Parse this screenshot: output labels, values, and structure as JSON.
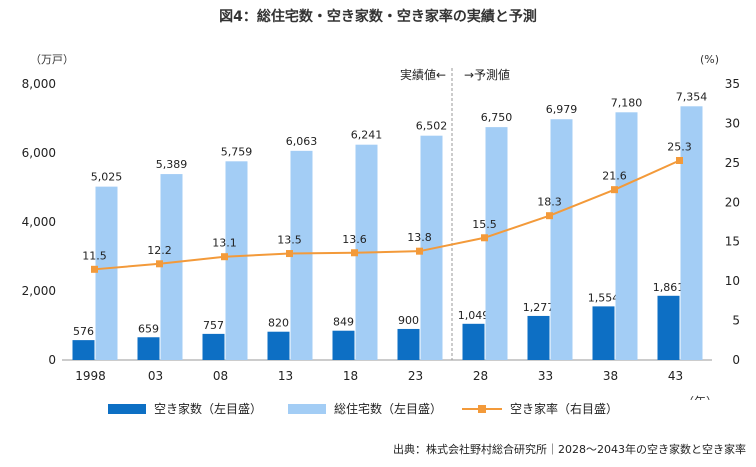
{
  "title": "図4：総住宅数・空き家数・空き家率の実績と予測",
  "source": "出典：株式会社野村総合研究所｜2028～2043年の空き家数と空き家率",
  "units": {
    "left": "（万戸）",
    "right": "(%)",
    "x": "（年）"
  },
  "annotations": {
    "actual": "実績値←",
    "forecast": "→予測値"
  },
  "legend": [
    {
      "key": "vacant_houses",
      "label": "空き家数（左目盛）",
      "color": "#0d6fc4"
    },
    {
      "key": "total_houses",
      "label": "総住宅数（左目盛）",
      "color": "#a3cdf5"
    },
    {
      "key": "vacancy_rate",
      "label": "空き家率（右目盛）",
      "color": "#f39a3a"
    }
  ],
  "chart_data": {
    "type": "bar",
    "categories": [
      "1998",
      "03",
      "08",
      "13",
      "18",
      "23",
      "28",
      "33",
      "38",
      "43"
    ],
    "series": [
      {
        "name": "空き家数（左目盛）",
        "axis": "left",
        "type": "bar",
        "color": "#0d6fc4",
        "values": [
          576,
          659,
          757,
          820,
          849,
          900,
          1049,
          1277,
          1554,
          1861
        ],
        "labels": [
          "576",
          "659",
          "757",
          "820",
          "849",
          "900",
          "1,049",
          "1,277",
          "1,554",
          "1,861"
        ]
      },
      {
        "name": "総住宅数（左目盛）",
        "axis": "left",
        "type": "bar",
        "color": "#a3cdf5",
        "values": [
          5025,
          5389,
          5759,
          6063,
          6241,
          6502,
          6750,
          6979,
          7180,
          7354
        ],
        "labels": [
          "5,025",
          "5,389",
          "5,759",
          "6,063",
          "6,241",
          "6,502",
          "6,750",
          "6,979",
          "7,180",
          "7,354"
        ]
      },
      {
        "name": "空き家率（右目盛）",
        "axis": "right",
        "type": "line",
        "color": "#f39a3a",
        "values": [
          11.5,
          12.2,
          13.1,
          13.5,
          13.6,
          13.8,
          15.5,
          18.3,
          21.6,
          25.3
        ],
        "labels": [
          "11.5",
          "12.2",
          "13.1",
          "13.5",
          "13.6",
          "13.8",
          "15.5",
          "18.3",
          "21.6",
          "25.3"
        ]
      }
    ],
    "y_left": {
      "min": 0,
      "max": 8000,
      "ticks": [
        "0",
        "2,000",
        "4,000",
        "6,000",
        "8,000"
      ]
    },
    "y_right": {
      "min": 0,
      "max": 35,
      "ticks": [
        "0",
        "5",
        "10",
        "15",
        "20",
        "25",
        "30",
        "35"
      ]
    },
    "forecast_divider_between": [
      "23",
      "28"
    ],
    "grid": false,
    "legend_position": "bottom"
  }
}
